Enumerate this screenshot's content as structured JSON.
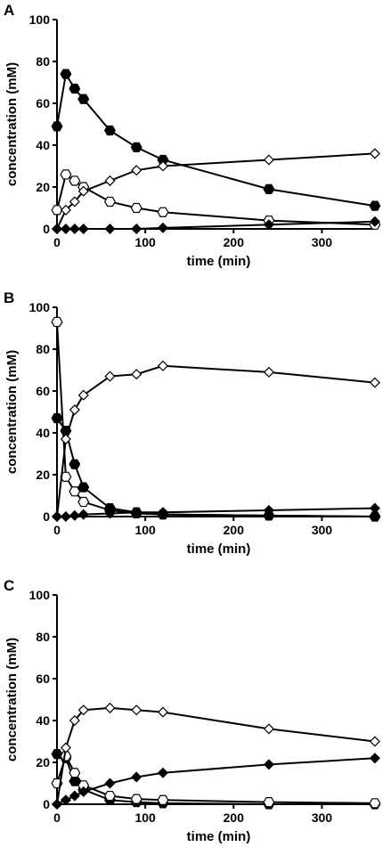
{
  "chart_data": [
    {
      "type": "line",
      "panel": "A",
      "xlabel": "time (min)",
      "ylabel": "concentration  (mM)",
      "xlim": [
        0,
        360
      ],
      "ylim": [
        0,
        100
      ],
      "xticks": [
        0,
        100,
        200,
        300
      ],
      "yticks": [
        0,
        20,
        40,
        60,
        80,
        100
      ],
      "series": [
        {
          "marker": "filled-hexagon",
          "x": [
            0,
            10,
            20,
            30,
            60,
            90,
            120,
            240,
            360
          ],
          "y": [
            49,
            74,
            67,
            62,
            47,
            39,
            33,
            19,
            11
          ]
        },
        {
          "marker": "open-hexagon",
          "x": [
            0,
            10,
            20,
            30,
            60,
            90,
            120,
            240,
            360
          ],
          "y": [
            9,
            26,
            23,
            20,
            13,
            10,
            8,
            4,
            2
          ]
        },
        {
          "marker": "open-diamond",
          "x": [
            0,
            10,
            20,
            30,
            60,
            90,
            120,
            240,
            360
          ],
          "y": [
            0,
            9,
            13,
            18,
            23,
            28,
            30,
            33,
            36
          ]
        },
        {
          "marker": "filled-diamond",
          "x": [
            0,
            10,
            20,
            30,
            60,
            90,
            120,
            240,
            360
          ],
          "y": [
            0,
            0,
            0,
            0,
            0,
            0,
            0.5,
            2,
            3.5
          ]
        }
      ]
    },
    {
      "type": "line",
      "panel": "B",
      "xlabel": "time (min)",
      "ylabel": "concentration  (mM)",
      "xlim": [
        0,
        360
      ],
      "ylim": [
        0,
        100
      ],
      "xticks": [
        0,
        100,
        200,
        300
      ],
      "yticks": [
        0,
        20,
        40,
        60,
        80,
        100
      ],
      "series": [
        {
          "marker": "open-hexagon",
          "x": [
            0,
            10,
            20,
            30,
            60,
            90,
            120,
            240,
            360
          ],
          "y": [
            93,
            19,
            12,
            7,
            3,
            1.5,
            1,
            0.5,
            0
          ]
        },
        {
          "marker": "filled-hexagon",
          "x": [
            0,
            10,
            20,
            30,
            60,
            90,
            120,
            240,
            360
          ],
          "y": [
            47,
            41,
            25,
            14,
            4,
            2,
            1,
            0.5,
            0
          ]
        },
        {
          "marker": "open-diamond",
          "x": [
            0,
            10,
            20,
            30,
            60,
            90,
            120,
            240,
            360
          ],
          "y": [
            0,
            37,
            51,
            58,
            67,
            68,
            72,
            69,
            64
          ]
        },
        {
          "marker": "filled-diamond",
          "x": [
            0,
            10,
            20,
            30,
            60,
            90,
            120,
            240,
            360
          ],
          "y": [
            0,
            0,
            0.5,
            1,
            1.5,
            2,
            2,
            3,
            4
          ]
        }
      ]
    },
    {
      "type": "line",
      "panel": "C",
      "xlabel": "time (min)",
      "ylabel": "concentration  (mM)",
      "xlim": [
        0,
        360
      ],
      "ylim": [
        0,
        100
      ],
      "xticks": [
        0,
        100,
        200,
        300
      ],
      "yticks": [
        0,
        20,
        40,
        60,
        80,
        100
      ],
      "series": [
        {
          "marker": "filled-hexagon",
          "x": [
            0,
            10,
            20,
            30,
            60,
            90,
            120,
            240,
            360
          ],
          "y": [
            24,
            22,
            11,
            7,
            2,
            1,
            0.5,
            0,
            0
          ]
        },
        {
          "marker": "open-hexagon",
          "x": [
            0,
            10,
            20,
            30,
            60,
            90,
            120,
            240,
            360
          ],
          "y": [
            10,
            23,
            15,
            9,
            4,
            2.5,
            2,
            1,
            0.5
          ]
        },
        {
          "marker": "open-diamond",
          "x": [
            0,
            10,
            20,
            30,
            60,
            90,
            120,
            240,
            360
          ],
          "y": [
            0,
            27,
            40,
            45,
            46,
            45,
            44,
            36,
            30
          ]
        },
        {
          "marker": "filled-diamond",
          "x": [
            0,
            10,
            20,
            30,
            60,
            90,
            120,
            240,
            360
          ],
          "y": [
            0,
            2,
            4,
            6,
            10,
            13,
            15,
            19,
            22
          ]
        }
      ]
    }
  ]
}
